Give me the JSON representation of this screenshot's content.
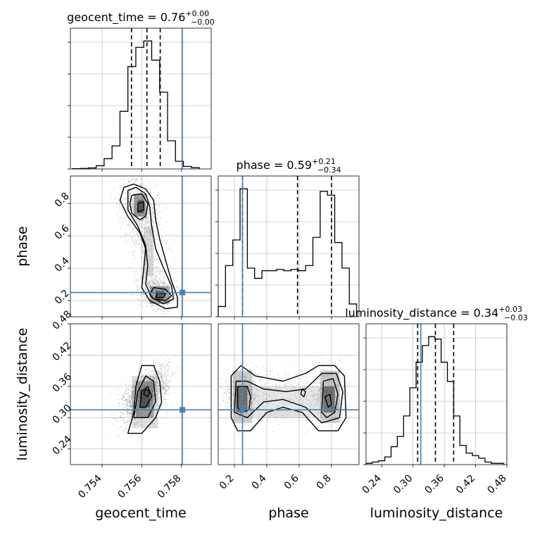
{
  "chart_data": {
    "type": "corner",
    "parameters": [
      {
        "name": "geocent_time",
        "xlabel": "geocent_time",
        "title": {
          "prefix": "geocent_time = ",
          "value": "0.76",
          "plus": "+0.00",
          "minus": "−0.00"
        },
        "range": [
          0.7524,
          0.7595
        ],
        "ticks": [
          0.754,
          0.756,
          0.758
        ],
        "tick_labels": [
          "0.754",
          "0.756",
          "0.758"
        ],
        "truth": 0.75805,
        "quantiles": [
          0.75548,
          0.75626,
          0.75693
        ],
        "hist_edges": [
          0.7525,
          0.7529,
          0.7533,
          0.7537,
          0.7541,
          0.7545,
          0.7549,
          0.7553,
          0.7557,
          0.7561,
          0.7565,
          0.7569,
          0.7573,
          0.7577,
          0.7581,
          0.7585,
          0.7589
        ],
        "hist_counts": [
          0.2,
          0.4,
          0.8,
          2.5,
          8,
          18,
          45,
          80,
          95,
          100,
          85,
          60,
          22,
          6,
          2,
          1
        ]
      },
      {
        "name": "phase",
        "xlabel": "phase",
        "ylabel": "phase",
        "title": {
          "prefix": "phase = ",
          "value": "0.59",
          "plus": "+0.21",
          "minus": "−0.34"
        },
        "range": [
          0.1,
          0.97
        ],
        "ticks": [
          0.2,
          0.4,
          0.6,
          0.8
        ],
        "tick_labels": [
          "0.2",
          "0.4",
          "0.6",
          "0.8"
        ],
        "truth": 0.25,
        "quantiles": [
          0.25,
          0.59,
          0.8
        ],
        "hist_edges": [
          0.1,
          0.145,
          0.19,
          0.235,
          0.28,
          0.325,
          0.37,
          0.415,
          0.46,
          0.505,
          0.55,
          0.595,
          0.64,
          0.685,
          0.73,
          0.775,
          0.82,
          0.865,
          0.91,
          0.955
        ],
        "hist_counts": [
          8,
          40,
          60,
          100,
          38,
          30,
          36,
          36,
          37,
          36,
          37,
          36,
          40,
          62,
          98,
          95,
          58,
          38,
          10
        ]
      },
      {
        "name": "luminosity_distance",
        "xlabel": "luminosity_distance",
        "ylabel": "luminosity_distance",
        "title": {
          "prefix": "luminosity_distance = ",
          "value": "0.34",
          "plus": "+0.03",
          "minus": "−0.03"
        },
        "range": [
          0.21,
          0.48
        ],
        "ticks": [
          0.24,
          0.3,
          0.36,
          0.42,
          0.48
        ],
        "tick_labels": [
          "0.24",
          "0.30",
          "0.36",
          "0.42",
          "0.48"
        ],
        "truth": 0.315,
        "quantiles": [
          0.309,
          0.343,
          0.378
        ],
        "hist_edges": [
          0.21,
          0.222,
          0.234,
          0.246,
          0.258,
          0.27,
          0.282,
          0.294,
          0.306,
          0.318,
          0.33,
          0.342,
          0.354,
          0.366,
          0.378,
          0.39,
          0.402,
          0.414,
          0.426,
          0.438,
          0.45,
          0.462,
          0.474
        ],
        "hist_counts": [
          1,
          2,
          3,
          6,
          14,
          22,
          38,
          60,
          80,
          93,
          100,
          98,
          80,
          65,
          38,
          15,
          9,
          7,
          5,
          2,
          1,
          1
        ]
      }
    ],
    "truth_color": "#4682b4",
    "grid": true
  }
}
